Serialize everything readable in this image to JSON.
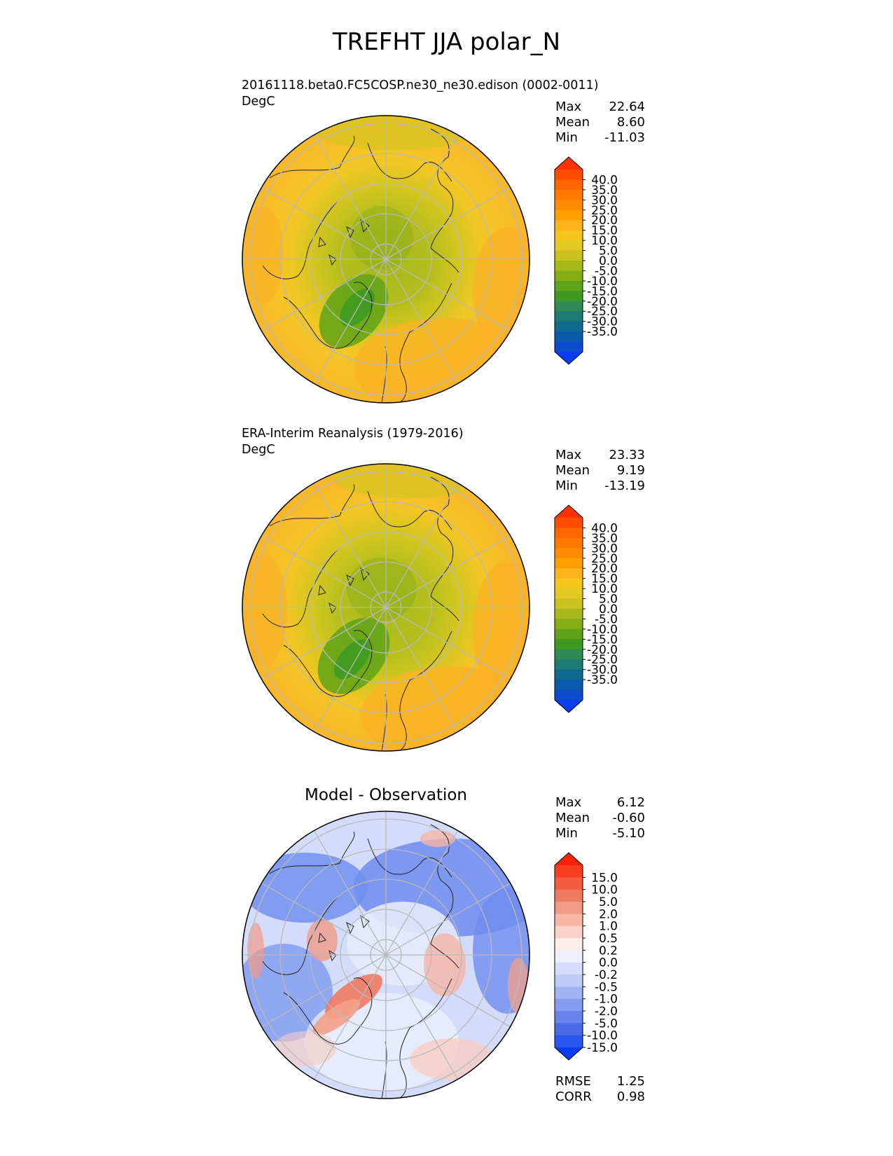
{
  "title": "TREFHT JJA polar_N",
  "panels": [
    {
      "id": "model",
      "label": "20161118.beta0.FC5COSP.ne30_ne30.edison (0002-0011)",
      "units": "DegC",
      "stats": [
        {
          "name": "Max",
          "value": "22.64"
        },
        {
          "name": "Mean",
          "value": "8.60"
        },
        {
          "name": "Min",
          "value": "-11.03"
        }
      ]
    },
    {
      "id": "obs",
      "label": "ERA-Interim Reanalysis (1979-2016)",
      "units": "DegC",
      "stats": [
        {
          "name": "Max",
          "value": "23.33"
        },
        {
          "name": "Mean",
          "value": "9.19"
        },
        {
          "name": "Min",
          "value": "-13.19"
        }
      ]
    },
    {
      "id": "diff",
      "label": "Model - Observation",
      "stats": [
        {
          "name": "Max",
          "value": "6.12"
        },
        {
          "name": "Mean",
          "value": "-0.60"
        },
        {
          "name": "Min",
          "value": "-5.10"
        }
      ],
      "metrics": [
        {
          "name": "RMSE",
          "value": "1.25"
        },
        {
          "name": "CORR",
          "value": "0.98"
        }
      ]
    }
  ],
  "colorbars": {
    "temperature": {
      "ticks": [
        "40.0",
        "35.0",
        "30.0",
        "25.0",
        "20.0",
        "15.0",
        "10.0",
        "5.0",
        "0.0",
        "-5.0",
        "-10.0",
        "-15.0",
        "-20.0",
        "-25.0",
        "-30.0",
        "-35.0"
      ],
      "colors": [
        "#ff3300",
        "#ff4d00",
        "#ff6600",
        "#ff7a00",
        "#ff8c00",
        "#ffa000",
        "#ffb31a",
        "#f5c51c",
        "#e3c922",
        "#c8c21f",
        "#a7b81b",
        "#86ad16",
        "#5fa318",
        "#3e9920",
        "#2e8a52",
        "#1e7a74",
        "#0f6a8e",
        "#0a5aab",
        "#0a4ccc",
        "#0a3cf0"
      ]
    },
    "difference": {
      "ticks": [
        "15.0",
        "10.0",
        "5.0",
        "2.0",
        "1.0",
        "0.5",
        "0.2",
        "0.0",
        "-0.2",
        "-0.5",
        "-1.0",
        "-2.0",
        "-5.0",
        "-10.0",
        "-15.0"
      ],
      "colors": [
        "#ff2200",
        "#f83d20",
        "#f25c40",
        "#ee7a62",
        "#f29a88",
        "#f6b6a8",
        "#fad2c8",
        "#fdeeea",
        "#eef0fd",
        "#d6ddfa",
        "#bccaf7",
        "#a0b4f4",
        "#839cf0",
        "#6684ec",
        "#4a6ce6",
        "#2a55ee",
        "#0a3cf5"
      ]
    }
  },
  "chart_data": [
    {
      "type": "heatmap",
      "title": "20161118.beta0.FC5COSP.ne30_ne30.edison (0002-0011)",
      "units": "DegC",
      "projection": "north polar stereographic",
      "field": "TREFHT JJA",
      "colorbar_levels": [
        -35.0,
        -30.0,
        -25.0,
        -20.0,
        -15.0,
        -10.0,
        -5.0,
        0.0,
        5.0,
        10.0,
        15.0,
        20.0,
        25.0,
        30.0,
        35.0,
        40.0
      ],
      "summary": {
        "max": 22.64,
        "mean": 8.6,
        "min": -11.03
      }
    },
    {
      "type": "heatmap",
      "title": "ERA-Interim Reanalysis (1979-2016)",
      "units": "DegC",
      "projection": "north polar stereographic",
      "field": "TREFHT JJA",
      "colorbar_levels": [
        -35.0,
        -30.0,
        -25.0,
        -20.0,
        -15.0,
        -10.0,
        -5.0,
        0.0,
        5.0,
        10.0,
        15.0,
        20.0,
        25.0,
        30.0,
        35.0,
        40.0
      ],
      "summary": {
        "max": 23.33,
        "mean": 9.19,
        "min": -13.19
      }
    },
    {
      "type": "heatmap",
      "title": "Model - Observation",
      "projection": "north polar stereographic",
      "field": "TREFHT JJA difference",
      "colorbar_levels": [
        -15.0,
        -10.0,
        -5.0,
        -2.0,
        -1.0,
        -0.5,
        -0.2,
        0.0,
        0.2,
        0.5,
        1.0,
        2.0,
        5.0,
        10.0,
        15.0
      ],
      "summary": {
        "max": 6.12,
        "mean": -0.6,
        "min": -5.1,
        "rmse": 1.25,
        "corr": 0.98
      }
    }
  ]
}
